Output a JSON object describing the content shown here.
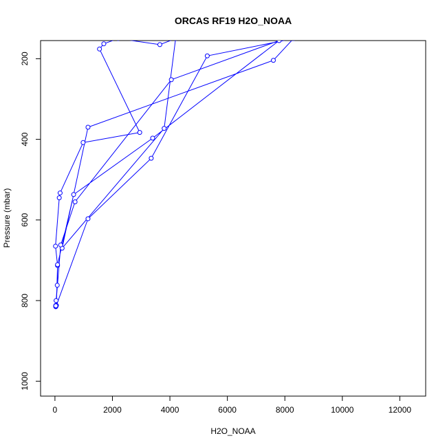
{
  "chart_data": {
    "type": "line",
    "title": "ORCAS RF19 H2O_NOAA",
    "xlabel": "H2O_NOAA",
    "ylabel": "Pressure (mbar)",
    "xlim": [
      -500,
      12900
    ],
    "ylim": [
      1037,
      155
    ],
    "y_reversed": true,
    "xticks": [
      0,
      2000,
      4000,
      6000,
      8000,
      10000,
      12000
    ],
    "yticks": [
      200,
      400,
      600,
      800,
      1000
    ],
    "grid": false,
    "legend": "none",
    "colors": {
      "series": "#0000ff",
      "frame": "#000000",
      "background": "#ffffff"
    },
    "series": [
      {
        "points": [
          [
            30,
            815
          ],
          [
            32,
            814
          ],
          [
            35,
            813
          ],
          [
            30,
            812
          ],
          [
            28,
            815
          ],
          [
            33,
            814
          ],
          [
            40,
            800
          ],
          [
            80,
            762
          ],
          [
            90,
            713
          ],
          [
            20,
            665
          ],
          [
            150,
            545
          ],
          [
            180,
            533
          ],
          [
            980,
            408
          ],
          [
            2950,
            383
          ],
          [
            1550,
            176
          ],
          [
            1700,
            163
          ],
          [
            2200,
            150
          ],
          [
            3650,
            165
          ],
          [
            4200,
            150
          ],
          [
            3800,
            373
          ],
          [
            250,
            670
          ],
          [
            1150,
            370
          ],
          [
            7600,
            204
          ],
          [
            8300,
            150
          ],
          [
            5300,
            193
          ],
          [
            3350,
            447
          ],
          [
            1150,
            597
          ],
          [
            50,
            812
          ],
          [
            90,
            711
          ],
          [
            650,
            537
          ],
          [
            3400,
            397
          ],
          [
            7800,
            155
          ],
          [
            4050,
            252
          ],
          [
            700,
            555
          ],
          [
            200,
            662
          ],
          [
            30,
            813
          ]
        ]
      }
    ]
  }
}
